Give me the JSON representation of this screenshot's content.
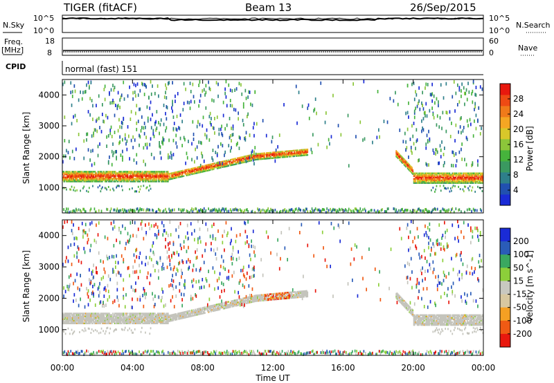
{
  "header": {
    "title": "TIGER (fitACF)",
    "beam": "Beam 13",
    "date": "26/Sep/2015"
  },
  "nsky_panel": {
    "left_label": "N.Sky",
    "left_ticks": [
      "10^5",
      "10^0"
    ],
    "right_label": "N.Search",
    "right_ticks": [
      "10^5",
      "10^0"
    ]
  },
  "freq_panel": {
    "left_label_line1": "Freq.",
    "left_label_line2": "[MHz]",
    "left_ticks": [
      "18",
      "8"
    ],
    "right_label": "Nave",
    "right_ticks": [
      "60",
      "0"
    ]
  },
  "cpid_panel": {
    "label": "CPID",
    "mode": "normal (fast) 151"
  },
  "colors": {
    "power": [
      "#1a2bd6",
      "#2150b0",
      "#2e7f8a",
      "#3a9960",
      "#46b33c",
      "#8cc63a",
      "#d8c72a",
      "#f5a623",
      "#f07a1a",
      "#ee4a14",
      "#e8180e"
    ],
    "velocity": [
      "#e8180e",
      "#f05a14",
      "#f5a023",
      "#d8c8a0",
      "#c8c8c0",
      "#8ccf3a",
      "#3aa860",
      "#2a5cb8",
      "#1a2bd6"
    ],
    "velocity_gray": "#c4c4bc"
  },
  "chart_data": [
    {
      "type": "heatmap",
      "name": "power",
      "xlabel": "",
      "ylabel": "Slant Range [km]",
      "x_ticks": [
        "00:00",
        "04:00",
        "08:00",
        "12:00",
        "16:00",
        "20:00",
        "00:00"
      ],
      "xlim_hours": [
        0,
        24
      ],
      "ylim_km": [
        180,
        4500
      ],
      "y_ticks": [
        1000,
        2000,
        3000,
        4000
      ],
      "colorbar": {
        "label": "Power [dB]",
        "range": [
          0,
          32
        ],
        "ticks": [
          4,
          8,
          12,
          16,
          20,
          24,
          28
        ]
      },
      "features": [
        {
          "desc": "strong band",
          "t_start": 0,
          "t_end": 6,
          "r_center": 1350,
          "r_width": 300,
          "power": 24
        },
        {
          "desc": "rising band",
          "t_start": 6,
          "t_end": 14,
          "r_start": 1400,
          "r_end": 2150,
          "power": 22
        },
        {
          "desc": "strong band",
          "t_start": 20,
          "t_end": 24,
          "r_center": 1300,
          "r_width": 300,
          "power": 24
        },
        {
          "desc": "near range",
          "t_start": 0,
          "t_end": 24,
          "r_center": 250,
          "r_width": 120,
          "power": 8
        }
      ]
    },
    {
      "type": "heatmap",
      "name": "velocity",
      "xlabel": "Time UT",
      "ylabel": "Slant Range [km]",
      "x_ticks": [
        "00:00",
        "04:00",
        "08:00",
        "12:00",
        "16:00",
        "20:00",
        "00:00"
      ],
      "xlim_hours": [
        0,
        24
      ],
      "ylim_km": [
        180,
        4500
      ],
      "y_ticks": [
        1000,
        2000,
        3000,
        4000
      ],
      "colorbar": {
        "label": "Velocity [m s^-1]",
        "ticks": [
          "200",
          "100",
          "50",
          "15",
          "-15",
          "-50",
          "-100",
          "-200"
        ]
      }
    }
  ]
}
